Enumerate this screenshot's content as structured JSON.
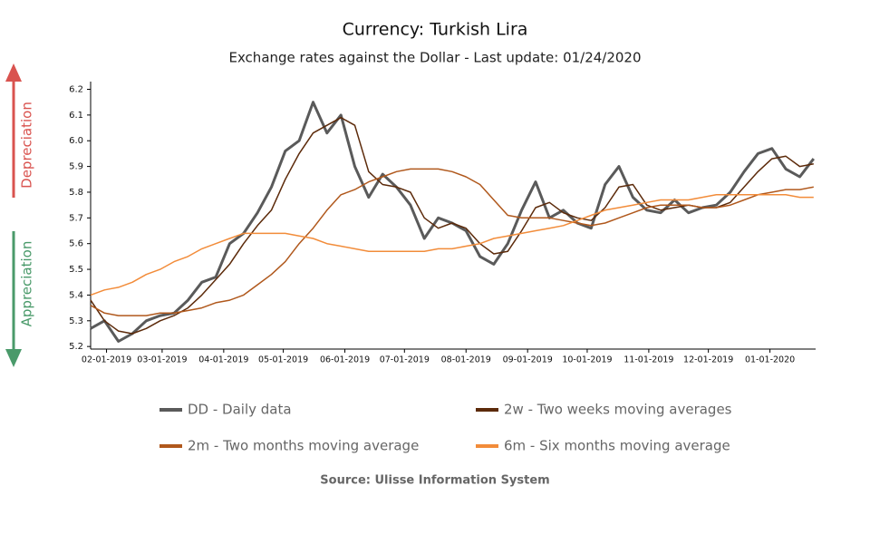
{
  "chart_data": {
    "type": "line",
    "title": "Currency: Turkish Lira",
    "subtitle": "Exchange rates against the Dollar - Last update: 01/24/2020",
    "source": "Source: Ulisse Information System",
    "annotations": [
      "Depreciation",
      "Appreciation"
    ],
    "x": [
      "2019-01-24",
      "2019-01-31",
      "2019-02-07",
      "2019-02-14",
      "2019-02-21",
      "2019-02-28",
      "2019-03-07",
      "2019-03-14",
      "2019-03-21",
      "2019-03-28",
      "2019-04-04",
      "2019-04-11",
      "2019-04-18",
      "2019-04-25",
      "2019-05-02",
      "2019-05-09",
      "2019-05-16",
      "2019-05-23",
      "2019-05-30",
      "2019-06-06",
      "2019-06-13",
      "2019-06-20",
      "2019-06-27",
      "2019-07-04",
      "2019-07-11",
      "2019-07-18",
      "2019-07-25",
      "2019-08-01",
      "2019-08-08",
      "2019-08-15",
      "2019-08-22",
      "2019-08-29",
      "2019-09-05",
      "2019-09-12",
      "2019-09-19",
      "2019-09-26",
      "2019-10-03",
      "2019-10-10",
      "2019-10-17",
      "2019-10-24",
      "2019-10-31",
      "2019-11-07",
      "2019-11-14",
      "2019-11-21",
      "2019-11-28",
      "2019-12-05",
      "2019-12-12",
      "2019-12-19",
      "2019-12-26",
      "2020-01-02",
      "2020-01-09",
      "2020-01-16",
      "2020-01-23"
    ],
    "series": [
      {
        "name": "DD - Daily data",
        "color": "#5a5a5a",
        "width": 3,
        "values": [
          5.27,
          5.3,
          5.22,
          5.25,
          5.3,
          5.32,
          5.33,
          5.38,
          5.45,
          5.47,
          5.6,
          5.64,
          5.72,
          5.82,
          5.96,
          6.0,
          6.15,
          6.03,
          6.1,
          5.9,
          5.78,
          5.87,
          5.82,
          5.75,
          5.62,
          5.7,
          5.68,
          5.65,
          5.55,
          5.52,
          5.6,
          5.73,
          5.84,
          5.7,
          5.73,
          5.68,
          5.66,
          5.83,
          5.9,
          5.78,
          5.73,
          5.72,
          5.77,
          5.72,
          5.74,
          5.75,
          5.8,
          5.88,
          5.95,
          5.97,
          5.89,
          5.86,
          5.93
        ]
      },
      {
        "name": "2w - Two weeks moving averages",
        "color": "#5c2a0a",
        "width": 1.5,
        "values": [
          5.38,
          5.3,
          5.26,
          5.25,
          5.27,
          5.3,
          5.32,
          5.35,
          5.4,
          5.46,
          5.52,
          5.6,
          5.67,
          5.73,
          5.85,
          5.95,
          6.03,
          6.06,
          6.09,
          6.06,
          5.88,
          5.83,
          5.82,
          5.8,
          5.7,
          5.66,
          5.68,
          5.66,
          5.6,
          5.56,
          5.57,
          5.65,
          5.74,
          5.76,
          5.72,
          5.7,
          5.69,
          5.74,
          5.82,
          5.83,
          5.75,
          5.73,
          5.74,
          5.75,
          5.74,
          5.74,
          5.76,
          5.82,
          5.88,
          5.93,
          5.94,
          5.9,
          5.91
        ]
      },
      {
        "name": "2m - Two months moving average",
        "color": "#b0581c",
        "width": 1.5,
        "values": [
          5.36,
          5.33,
          5.32,
          5.32,
          5.32,
          5.33,
          5.33,
          5.34,
          5.35,
          5.37,
          5.38,
          5.4,
          5.44,
          5.48,
          5.53,
          5.6,
          5.66,
          5.73,
          5.79,
          5.81,
          5.84,
          5.86,
          5.88,
          5.89,
          5.89,
          5.89,
          5.88,
          5.86,
          5.83,
          5.77,
          5.71,
          5.7,
          5.7,
          5.7,
          5.69,
          5.68,
          5.67,
          5.68,
          5.7,
          5.72,
          5.74,
          5.75,
          5.75,
          5.75,
          5.74,
          5.74,
          5.75,
          5.77,
          5.79,
          5.8,
          5.81,
          5.81,
          5.82
        ]
      },
      {
        "name": "6m - Six months moving average",
        "color": "#f28c3a",
        "width": 1.5,
        "values": [
          5.4,
          5.42,
          5.43,
          5.45,
          5.48,
          5.5,
          5.53,
          5.55,
          5.58,
          5.6,
          5.62,
          5.64,
          5.64,
          5.64,
          5.64,
          5.63,
          5.62,
          5.6,
          5.59,
          5.58,
          5.57,
          5.57,
          5.57,
          5.57,
          5.57,
          5.58,
          5.58,
          5.59,
          5.6,
          5.62,
          5.63,
          5.64,
          5.65,
          5.66,
          5.67,
          5.69,
          5.71,
          5.73,
          5.74,
          5.75,
          5.76,
          5.77,
          5.77,
          5.77,
          5.78,
          5.79,
          5.79,
          5.79,
          5.79,
          5.79,
          5.79,
          5.78,
          5.78
        ]
      }
    ],
    "xlim": [
      "2019-01-24",
      "2020-01-24"
    ],
    "xticks": [
      {
        "value": "2019-02-01",
        "label": "02-01-2019"
      },
      {
        "value": "2019-03-01",
        "label": "03-01-2019"
      },
      {
        "value": "2019-04-01",
        "label": "04-01-2019"
      },
      {
        "value": "2019-05-01",
        "label": "05-01-2019"
      },
      {
        "value": "2019-06-01",
        "label": "06-01-2019"
      },
      {
        "value": "2019-07-01",
        "label": "07-01-2019"
      },
      {
        "value": "2019-08-01",
        "label": "08-01-2019"
      },
      {
        "value": "2019-09-01",
        "label": "09-01-2019"
      },
      {
        "value": "2019-10-01",
        "label": "10-01-2019"
      },
      {
        "value": "2019-11-01",
        "label": "11-01-2019"
      },
      {
        "value": "2019-12-01",
        "label": "12-01-2019"
      },
      {
        "value": "2020-01-01",
        "label": "01-01-2020"
      }
    ],
    "ylim": [
      5.19,
      6.23
    ],
    "yticks": [
      5.2,
      5.3,
      5.4,
      5.5,
      5.6,
      5.7,
      5.8,
      5.9,
      {
        "value": 6,
        "label": "6.0"
      },
      6.1,
      6.2
    ],
    "grid": false
  }
}
